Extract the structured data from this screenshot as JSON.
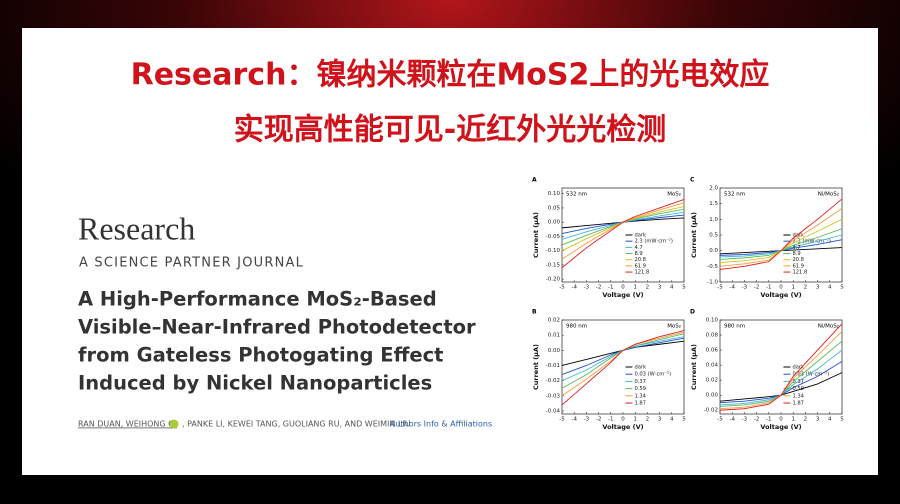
{
  "header": {
    "line1": "Research：镍纳米颗粒在MoS2上的光电效应",
    "line2": "实现高性能可见-近红外光光检测"
  },
  "journal": {
    "name": "Research",
    "tagline": "A SCIENCE PARTNER JOURNAL"
  },
  "paper": {
    "title_lines": [
      "A High-Performance MoS₂-Based",
      "Visible–Near-Infrared Photodetector",
      "from Gateless Photogating Effect",
      "Induced by Nickel Nanoparticles"
    ],
    "authors_1": "RAN DUAN, WEIHONG QI",
    "authors_2": ", PANKE LI, KEWEI TANG, GUOLIANG RU, AND WEIMIN LIU",
    "affiliations_link": "Authors Info & Affiliations"
  },
  "figure": {
    "panels": [
      {
        "type": "line",
        "label": "A",
        "wavelength": "532 nm",
        "material": "MoS₂",
        "xlabel": "Voltage (V)",
        "ylabel": "Current (μA)",
        "x": [
          -5,
          -3,
          -1,
          0,
          1,
          3,
          5
        ],
        "xlim": [
          -5,
          5
        ],
        "xticks": [
          -5,
          -4,
          -3,
          -2,
          -1,
          0,
          1,
          2,
          3,
          4,
          5
        ],
        "ylim": [
          -0.21,
          0.12
        ],
        "yticks": [
          {
            "value": 0.1,
            "label": "0.10"
          },
          {
            "value": 0.05,
            "label": "0.05"
          },
          {
            "value": 0,
            "label": "0.00"
          },
          {
            "value": -0.05,
            "label": "-0.05"
          },
          {
            "value": -0.1,
            "label": "-0.10"
          },
          {
            "value": -0.15,
            "label": "-0.15"
          },
          {
            "value": -0.2,
            "label": "-0.20"
          }
        ],
        "series": [
          {
            "name": "dark",
            "color": "#000000",
            "values": [
              -0.02,
              -0.012,
              -0.004,
              0,
              0.004,
              0.01,
              0.015
            ]
          },
          {
            "name": "2.3 (mW·cm⁻²)",
            "color": "#1f4fd1",
            "values": [
              -0.04,
              -0.022,
              -0.007,
              0,
              0.006,
              0.016,
              0.025
            ]
          },
          {
            "name": "4.7",
            "color": "#3fb8d8",
            "values": [
              -0.06,
              -0.034,
              -0.011,
              0,
              0.008,
              0.022,
              0.035
            ]
          },
          {
            "name": "8.9",
            "color": "#5cb85c",
            "values": [
              -0.08,
              -0.046,
              -0.015,
              0,
              0.011,
              0.03,
              0.045
            ]
          },
          {
            "name": "20.8",
            "color": "#d4c21a",
            "values": [
              -0.1,
              -0.058,
              -0.019,
              0,
              0.013,
              0.036,
              0.055
            ]
          },
          {
            "name": "61.9",
            "color": "#f39c3a",
            "values": [
              -0.13,
              -0.074,
              -0.024,
              0,
              0.016,
              0.043,
              0.068
            ]
          },
          {
            "name": "121.8",
            "color": "#e31a1c",
            "values": [
              -0.16,
              -0.09,
              -0.03,
              0,
              0.02,
              0.05,
              0.08
            ]
          }
        ]
      },
      {
        "type": "line",
        "label": "C",
        "wavelength": "532 nm",
        "material": "Ni/MoS₂",
        "xlabel": "Voltage (V)",
        "ylabel": "Current (μA)",
        "x": [
          -5,
          -3,
          -1,
          0,
          1,
          3,
          5
        ],
        "xlim": [
          -5,
          5
        ],
        "xticks": [
          -5,
          -4,
          -3,
          -2,
          -1,
          0,
          1,
          2,
          3,
          4,
          5
        ],
        "ylim": [
          -1.0,
          2.0
        ],
        "yticks": [
          {
            "value": 2,
            "label": "2.0"
          },
          {
            "value": 1.5,
            "label": "1.5"
          },
          {
            "value": 1,
            "label": "1.0"
          },
          {
            "value": 0.5,
            "label": "0.5"
          },
          {
            "value": 0,
            "label": "0.0"
          },
          {
            "value": -0.5,
            "label": "-0.5"
          },
          {
            "value": -1,
            "label": "-1.0"
          }
        ],
        "series": [
          {
            "name": "dark",
            "color": "#000000",
            "values": [
              -0.1,
              -0.06,
              -0.02,
              0,
              0.02,
              0.06,
              0.1
            ]
          },
          {
            "name": "2.3 (mW·cm⁻²)",
            "color": "#1f4fd1",
            "values": [
              -0.15,
              -0.12,
              -0.06,
              0,
              0.08,
              0.2,
              0.35
            ]
          },
          {
            "name": "4.7",
            "color": "#3fb8d8",
            "values": [
              -0.2,
              -0.17,
              -0.1,
              0,
              0.12,
              0.3,
              0.5
            ]
          },
          {
            "name": "8.9",
            "color": "#5cb85c",
            "values": [
              -0.28,
              -0.23,
              -0.15,
              0,
              0.17,
              0.42,
              0.7
            ]
          },
          {
            "name": "20.8",
            "color": "#d4c21a",
            "values": [
              -0.38,
              -0.32,
              -0.22,
              0,
              0.25,
              0.62,
              1.0
            ]
          },
          {
            "name": "61.9",
            "color": "#f39c3a",
            "values": [
              -0.5,
              -0.42,
              -0.3,
              0,
              0.33,
              0.82,
              1.35
            ]
          },
          {
            "name": "121.8",
            "color": "#e31a1c",
            "values": [
              -0.6,
              -0.5,
              -0.35,
              0,
              0.4,
              1.0,
              1.65
            ]
          }
        ]
      },
      {
        "type": "line",
        "label": "B",
        "wavelength": "980 nm",
        "material": "MoS₂",
        "xlabel": "Voltage (V)",
        "ylabel": "Current (μA)",
        "x": [
          -5,
          -3,
          -1,
          0,
          1,
          3,
          5
        ],
        "xlim": [
          -5,
          5
        ],
        "xticks": [
          -5,
          -4,
          -3,
          -2,
          -1,
          0,
          1,
          2,
          3,
          4,
          5
        ],
        "ylim": [
          -0.042,
          0.02
        ],
        "yticks": [
          {
            "value": 0.02,
            "label": "0.02"
          },
          {
            "value": 0.01,
            "label": "0.01"
          },
          {
            "value": 0,
            "label": "0.00"
          },
          {
            "value": -0.01,
            "label": "-0.01"
          },
          {
            "value": -0.02,
            "label": "-0.02"
          },
          {
            "value": -0.03,
            "label": "-0.03"
          },
          {
            "value": -0.04,
            "label": "-0.04"
          }
        ],
        "series": [
          {
            "name": "dark",
            "color": "#000000",
            "values": [
              -0.01,
              -0.006,
              -0.002,
              0,
              0.002,
              0.004,
              0.006
            ]
          },
          {
            "name": "0.03 (W·cm⁻²)",
            "color": "#1f4fd1",
            "values": [
              -0.016,
              -0.01,
              -0.003,
              0,
              0.002,
              0.005,
              0.008
            ]
          },
          {
            "name": "0.37",
            "color": "#3fb8d8",
            "values": [
              -0.02,
              -0.013,
              -0.004,
              0,
              0.003,
              0.006,
              0.009
            ]
          },
          {
            "name": "0.59",
            "color": "#5cb85c",
            "values": [
              -0.025,
              -0.016,
              -0.005,
              0,
              0.003,
              0.007,
              0.011
            ]
          },
          {
            "name": "1.34",
            "color": "#f39c3a",
            "values": [
              -0.03,
              -0.019,
              -0.007,
              0,
              0.004,
              0.008,
              0.012
            ]
          },
          {
            "name": "1.87",
            "color": "#e31a1c",
            "values": [
              -0.036,
              -0.022,
              -0.008,
              0,
              0.004,
              0.009,
              0.013
            ]
          }
        ]
      },
      {
        "type": "line",
        "label": "D",
        "wavelength": "980 nm",
        "material": "Ni/MoS₂",
        "xlabel": "Voltage (V)",
        "ylabel": "Current (μA)",
        "x": [
          -5,
          -3,
          -1,
          0,
          1,
          3,
          5
        ],
        "xlim": [
          -5,
          5
        ],
        "xticks": [
          -5,
          -4,
          -3,
          -2,
          -1,
          0,
          1,
          2,
          3,
          4,
          5
        ],
        "ylim": [
          -0.025,
          0.1
        ],
        "yticks": [
          {
            "value": 0.1,
            "label": "0.10"
          },
          {
            "value": 0.08,
            "label": "0.08"
          },
          {
            "value": 0.06,
            "label": "0.06"
          },
          {
            "value": 0.04,
            "label": "0.04"
          },
          {
            "value": 0.02,
            "label": "0.02"
          },
          {
            "value": 0,
            "label": "0.00"
          },
          {
            "value": -0.02,
            "label": "-0.02"
          }
        ],
        "series": [
          {
            "name": "dark",
            "color": "#000000",
            "values": [
              -0.008,
              -0.005,
              -0.002,
              0,
              0.005,
              0.015,
              0.03
            ]
          },
          {
            "name": "0.03 (W·cm⁻²)",
            "color": "#1f4fd1",
            "values": [
              -0.01,
              -0.008,
              -0.004,
              0,
              0.01,
              0.025,
              0.045
            ]
          },
          {
            "name": "0.37",
            "color": "#3fb8d8",
            "values": [
              -0.013,
              -0.011,
              -0.006,
              0,
              0.014,
              0.035,
              0.06
            ]
          },
          {
            "name": "0.59",
            "color": "#5cb85c",
            "values": [
              -0.015,
              -0.013,
              -0.008,
              0,
              0.018,
              0.045,
              0.072
            ]
          },
          {
            "name": "1.34",
            "color": "#f39c3a",
            "values": [
              -0.018,
              -0.016,
              -0.01,
              0,
              0.022,
              0.053,
              0.085
            ]
          },
          {
            "name": "1.87",
            "color": "#e31a1c",
            "values": [
              -0.02,
              -0.018,
              -0.012,
              0,
              0.025,
              0.06,
              0.095
            ]
          }
        ]
      }
    ]
  }
}
